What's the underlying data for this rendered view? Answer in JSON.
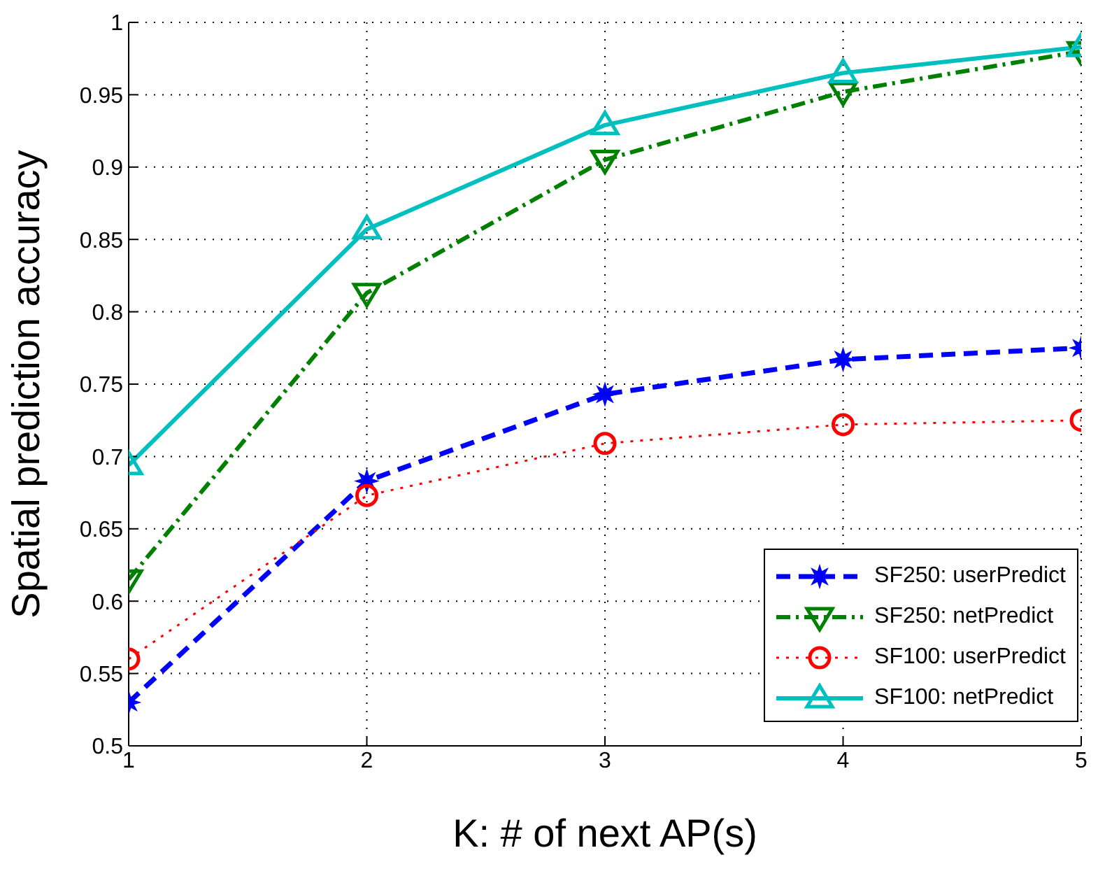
{
  "chart_data": {
    "type": "line",
    "xlabel": "K: # of next AP(s)",
    "ylabel": "Spatial prediction accuracy",
    "x": [
      1,
      2,
      3,
      4,
      5
    ],
    "xlim": [
      1,
      5
    ],
    "xticks": [
      1,
      2,
      3,
      4,
      5
    ],
    "ylim": [
      0.5,
      1
    ],
    "yticks": [
      0.5,
      0.55,
      0.6,
      0.65,
      0.7,
      0.75,
      0.8,
      0.85,
      0.9,
      0.95,
      1
    ],
    "grid": true,
    "legend": "bottom right",
    "series": [
      {
        "name": "SF250: userPredict",
        "color": "#0000ff",
        "marker": "star",
        "line_style": "dashed",
        "values": [
          0.53,
          0.683,
          0.743,
          0.767,
          0.775
        ]
      },
      {
        "name": "SF250: netPredict",
        "color": "#008000",
        "marker": "triangle-down",
        "line_style": "dashdot",
        "values": [
          0.615,
          0.813,
          0.905,
          0.952,
          0.98
        ]
      },
      {
        "name": "SF100: userPredict",
        "color": "#ff0000",
        "marker": "circle",
        "line_style": "dotted",
        "values": [
          0.56,
          0.673,
          0.709,
          0.722,
          0.725
        ]
      },
      {
        "name": "SF100: netPredict",
        "color": "#00bfbf",
        "marker": "triangle",
        "line_style": "solid",
        "values": [
          0.694,
          0.857,
          0.929,
          0.965,
          0.983
        ]
      }
    ]
  }
}
